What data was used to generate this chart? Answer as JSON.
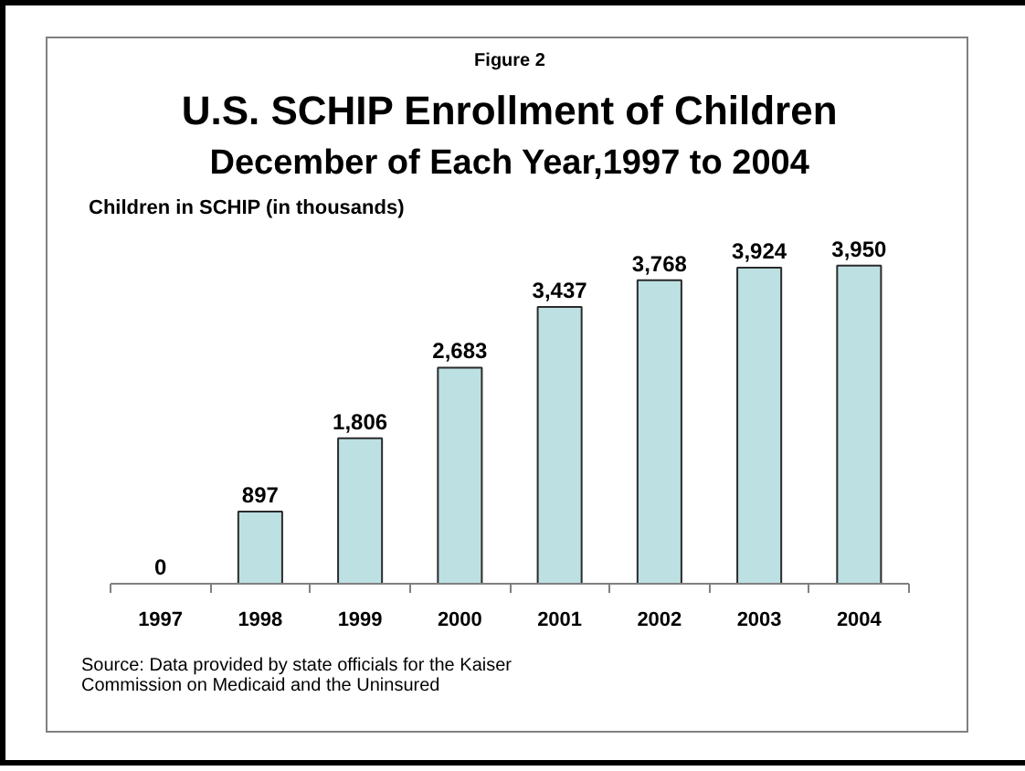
{
  "chart_data": {
    "type": "bar",
    "title": "U.S. SCHIP Enrollment of Children",
    "subtitle": "December of Each Year,1997 to 2004",
    "ylabel": "Children in SCHIP (in thousands)",
    "annotations": [
      "Figure 2",
      "Source: Data provided by state officials for the Kaiser Commission on Medicaid and the Uninsured"
    ],
    "categories": [
      "1997",
      "1998",
      "1999",
      "2000",
      "2001",
      "2002",
      "2003",
      "2004"
    ],
    "values": [
      0,
      897,
      1806,
      2683,
      3437,
      3768,
      3924,
      3950
    ],
    "value_labels": [
      "0",
      "897",
      "1,806",
      "2,683",
      "3,437",
      "3,768",
      "3,924",
      "3,950"
    ],
    "color": "#bde0e3",
    "tick_labels": "x"
  }
}
